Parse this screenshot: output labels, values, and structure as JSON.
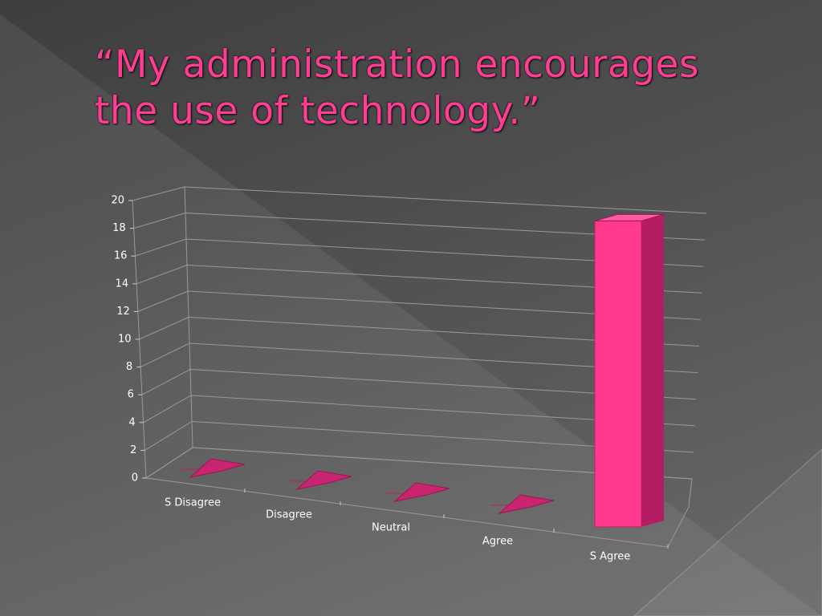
{
  "chart_data": {
    "type": "bar",
    "title": "“My administration encourages the use of technology.”",
    "categories": [
      "S Disagree",
      "Disagree",
      "Neutral",
      "Agree",
      "S Agree"
    ],
    "values": [
      0,
      0,
      0,
      0,
      18
    ],
    "color": "#ff3a8c",
    "ylim": [
      0,
      20
    ],
    "yticks": [
      0,
      2,
      4,
      6,
      8,
      10,
      12,
      14,
      16,
      18,
      20
    ],
    "grid": true
  }
}
